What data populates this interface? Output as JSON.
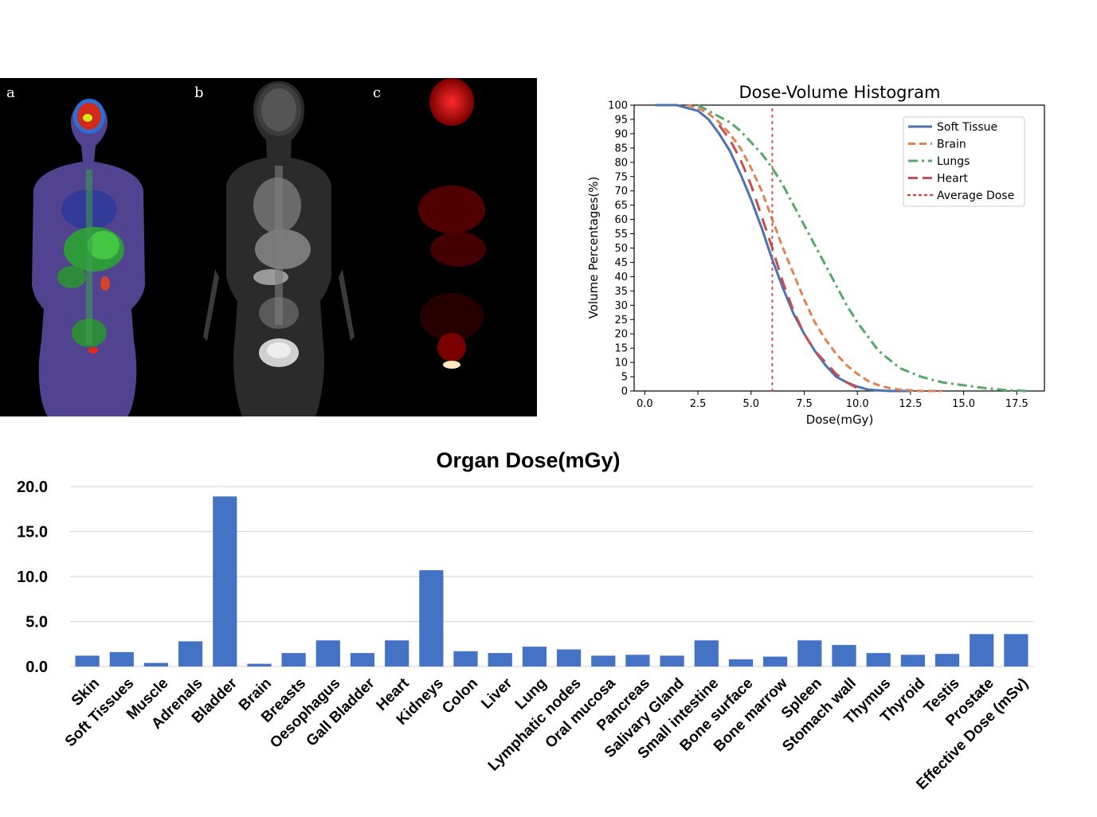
{
  "panels": {
    "labels": [
      "a",
      "b",
      "c"
    ]
  },
  "chart_data": [
    {
      "type": "line",
      "title": "Dose-Volume Histogram",
      "xlabel": "Dose(mGy)",
      "ylabel": "Volume Percentages(%)",
      "xlim": [
        -0.5,
        18.8
      ],
      "ylim": [
        0,
        100
      ],
      "xticks": [
        "0.0",
        "2.5",
        "5.0",
        "7.5",
        "10.0",
        "12.5",
        "15.0",
        "17.5"
      ],
      "yticks": [
        "0",
        "5",
        "10",
        "15",
        "20",
        "25",
        "30",
        "35",
        "40",
        "45",
        "50",
        "55",
        "60",
        "65",
        "70",
        "75",
        "80",
        "85",
        "90",
        "95",
        "100"
      ],
      "legend_position": "top-right",
      "series": [
        {
          "name": "Soft Tissue",
          "color": "#4c72b0",
          "style": "solid",
          "x": [
            0.5,
            1.5,
            2.5,
            3.0,
            3.5,
            4.0,
            4.5,
            5.0,
            5.5,
            6.0,
            6.5,
            7.0,
            7.5,
            8.0,
            8.5,
            9.0,
            9.5,
            10.0,
            10.5,
            11.0,
            11.5,
            12.5
          ],
          "y": [
            100,
            100,
            98,
            95,
            90,
            84,
            76,
            67,
            57,
            46,
            36,
            27,
            20,
            14,
            9,
            5,
            3,
            1.5,
            0.5,
            0.2,
            0,
            0
          ]
        },
        {
          "name": "Brain",
          "color": "#dd8452",
          "style": "dashed",
          "x": [
            2.0,
            2.5,
            3.0,
            3.5,
            4.0,
            4.5,
            5.0,
            5.5,
            6.0,
            6.5,
            7.0,
            7.5,
            8.0,
            8.5,
            9.0,
            9.5,
            10.0,
            10.5,
            11.0,
            11.5,
            12.0,
            13.0,
            14.0
          ],
          "y": [
            100,
            99,
            97,
            94,
            90,
            85,
            78,
            70,
            60,
            50,
            41,
            32,
            24,
            18,
            13,
            9,
            6,
            3.5,
            2,
            1,
            0.5,
            0,
            0
          ]
        },
        {
          "name": "Lungs",
          "color": "#55a868",
          "style": "dashdot",
          "x": [
            2.5,
            3.0,
            3.5,
            4.0,
            4.5,
            5.0,
            5.5,
            6.0,
            6.5,
            7.0,
            7.5,
            8.0,
            8.5,
            9.0,
            9.5,
            10.0,
            10.5,
            11.0,
            11.5,
            12.0,
            13.0,
            14.0,
            15.0,
            16.0,
            17.0,
            18.0
          ],
          "y": [
            100,
            98,
            96,
            94,
            91,
            87,
            83,
            78,
            72,
            65,
            58,
            51,
            44,
            37,
            30,
            24,
            19,
            14,
            11,
            8,
            5,
            3,
            2,
            1,
            0.3,
            0
          ]
        },
        {
          "name": "Heart",
          "color": "#c44e52",
          "style": "longdash",
          "x": [
            3.5,
            4.0,
            4.5,
            5.0,
            5.5,
            6.0,
            6.5,
            7.0,
            7.5,
            8.0,
            8.5,
            9.0,
            9.5,
            10.0
          ],
          "y": [
            93,
            88,
            81,
            72,
            61,
            50,
            38,
            28,
            20,
            14,
            10,
            6,
            3,
            1
          ]
        },
        {
          "name": "Average Dose",
          "color": "#c44e52",
          "style": "dotted",
          "x": [
            6.0,
            6.0
          ],
          "y": [
            0,
            100
          ]
        }
      ]
    },
    {
      "type": "bar",
      "title": "Organ Dose(mGy)",
      "ylim": [
        0,
        20
      ],
      "yticks": [
        "0.0",
        "5.0",
        "10.0",
        "15.0",
        "20.0"
      ],
      "bar_color": "#4472c4",
      "categories": [
        "Skin",
        "Soft Tissues",
        "Muscle",
        "Adrenals",
        "Bladder",
        "Brain",
        "Breasts",
        "Oesophagus",
        "Gall Bladder",
        "Heart",
        "Kidneys",
        "Colon",
        "Liver",
        "Lung",
        "Lymphatic nodes",
        "Oral mucosa",
        "Pancreas",
        "Salivary Gland",
        "Small intestine",
        "Bone surface",
        "Bone marrow",
        "Spleen",
        "Stomach wall",
        "Thymus",
        "Thyroid",
        "Testis",
        "Prostate",
        "Effective Dose (mSv)"
      ],
      "values": [
        1.2,
        1.6,
        0.4,
        2.8,
        18.9,
        0.3,
        1.5,
        2.9,
        1.5,
        2.9,
        10.7,
        1.7,
        1.5,
        2.2,
        1.9,
        1.2,
        1.3,
        1.2,
        2.9,
        0.8,
        1.1,
        2.9,
        2.4,
        1.5,
        1.3,
        1.4,
        3.6,
        3.6
      ]
    }
  ]
}
